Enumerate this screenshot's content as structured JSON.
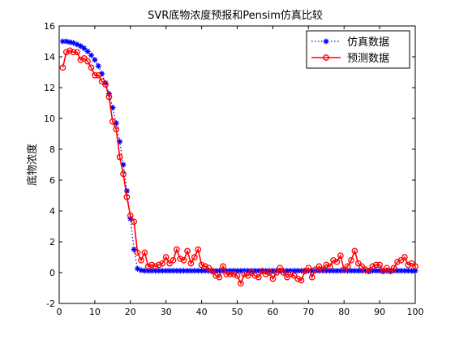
{
  "chart_data": {
    "type": "line",
    "title": "SVR底物浓度预报和Pensim仿真比较",
    "xlabel": "",
    "ylabel": "底物浓度",
    "xlim": [
      0,
      100
    ],
    "ylim": [
      -2,
      16
    ],
    "xticks": [
      0,
      10,
      20,
      30,
      40,
      50,
      60,
      70,
      80,
      90,
      100
    ],
    "yticks": [
      -2,
      0,
      2,
      4,
      6,
      8,
      10,
      12,
      14,
      16
    ],
    "grid": false,
    "legend_position": "top-right",
    "x": [
      1,
      2,
      3,
      4,
      5,
      6,
      7,
      8,
      9,
      10,
      11,
      12,
      13,
      14,
      15,
      16,
      17,
      18,
      19,
      20,
      21,
      22,
      23,
      24,
      25,
      26,
      27,
      28,
      29,
      30,
      31,
      32,
      33,
      34,
      35,
      36,
      37,
      38,
      39,
      40,
      41,
      42,
      43,
      44,
      45,
      46,
      47,
      48,
      49,
      50,
      51,
      52,
      53,
      54,
      55,
      56,
      57,
      58,
      59,
      60,
      61,
      62,
      63,
      64,
      65,
      66,
      67,
      68,
      69,
      70,
      71,
      72,
      73,
      74,
      75,
      76,
      77,
      78,
      79,
      80,
      81,
      82,
      83,
      84,
      85,
      86,
      87,
      88,
      89,
      90,
      91,
      92,
      93,
      94,
      95,
      96,
      97,
      98,
      99,
      100
    ],
    "series": [
      {
        "name": "仿真数据",
        "color": "#0000ff",
        "line_style": "dotted",
        "marker": "star",
        "values": [
          15.0,
          15.0,
          14.95,
          14.9,
          14.8,
          14.7,
          14.55,
          14.35,
          14.1,
          13.8,
          13.4,
          12.9,
          12.3,
          11.6,
          10.7,
          9.7,
          8.5,
          7.0,
          5.3,
          3.5,
          1.5,
          0.25,
          0.15,
          0.12,
          0.12,
          0.12,
          0.12,
          0.12,
          0.12,
          0.12,
          0.12,
          0.12,
          0.12,
          0.12,
          0.12,
          0.12,
          0.12,
          0.12,
          0.12,
          0.12,
          0.12,
          0.12,
          0.12,
          0.12,
          0.12,
          0.12,
          0.12,
          0.12,
          0.12,
          0.12,
          0.12,
          0.12,
          0.12,
          0.12,
          0.12,
          0.12,
          0.12,
          0.12,
          0.12,
          0.12,
          0.12,
          0.12,
          0.12,
          0.12,
          0.12,
          0.12,
          0.12,
          0.12,
          0.12,
          0.12,
          0.12,
          0.12,
          0.12,
          0.12,
          0.12,
          0.12,
          0.12,
          0.12,
          0.12,
          0.12,
          0.12,
          0.12,
          0.12,
          0.12,
          0.12,
          0.12,
          0.12,
          0.12,
          0.12,
          0.12,
          0.12,
          0.12,
          0.12,
          0.12,
          0.12,
          0.12,
          0.12,
          0.12,
          0.12,
          0.12
        ]
      },
      {
        "name": "预测数据",
        "color": "#ff0000",
        "line_style": "solid",
        "marker": "circle",
        "values": [
          13.3,
          14.3,
          14.4,
          14.3,
          14.3,
          13.8,
          13.9,
          13.7,
          13.3,
          12.8,
          12.8,
          12.4,
          12.2,
          11.4,
          9.8,
          9.3,
          7.5,
          6.4,
          4.9,
          3.7,
          3.3,
          1.3,
          0.8,
          1.3,
          0.4,
          0.5,
          0.4,
          0.5,
          0.6,
          1.0,
          0.6,
          0.8,
          1.5,
          0.9,
          0.8,
          1.4,
          0.6,
          1.0,
          1.5,
          0.5,
          0.4,
          0.3,
          0.1,
          -0.2,
          -0.3,
          0.4,
          -0.1,
          -0.1,
          -0.1,
          -0.2,
          -0.7,
          -0.1,
          -0.2,
          0.0,
          -0.2,
          -0.3,
          0.1,
          -0.1,
          0.0,
          -0.4,
          0.0,
          0.3,
          0.0,
          -0.3,
          -0.1,
          -0.2,
          -0.4,
          -0.5,
          0.1,
          0.3,
          -0.3,
          0.2,
          0.4,
          0.2,
          0.5,
          0.4,
          0.8,
          0.7,
          1.1,
          0.2,
          0.4,
          0.8,
          1.4,
          0.6,
          0.4,
          0.2,
          0.1,
          0.4,
          0.5,
          0.5,
          0.1,
          0.3,
          0.1,
          0.3,
          0.7,
          0.8,
          1.0,
          0.5,
          0.6,
          0.4
        ]
      }
    ]
  }
}
